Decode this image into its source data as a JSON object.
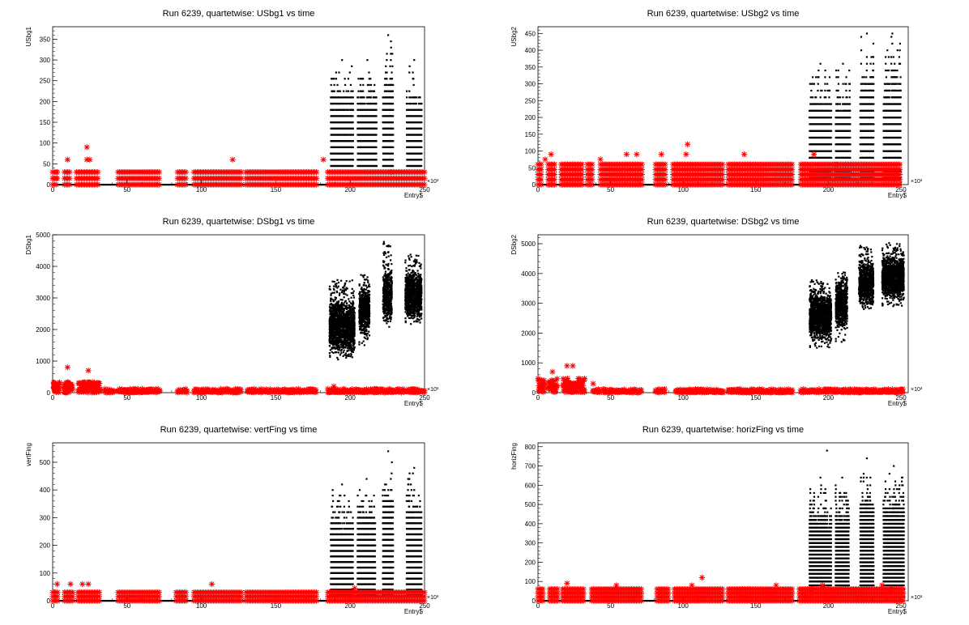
{
  "chart_data": [
    {
      "type": "scatter",
      "title": "Run 6239, quartetwise: USbg1 vs time",
      "xlabel": "Entry$",
      "ylabel": "USbg1",
      "x_multiplier_label": "×10³",
      "xlim": [
        0,
        250
      ],
      "ylim": [
        0,
        380
      ],
      "xticks": [
        0,
        50,
        100,
        150,
        200,
        250
      ],
      "yticks": [
        0,
        50,
        100,
        150,
        200,
        250,
        300,
        350
      ],
      "black_clusters": [
        {
          "x": [
            187,
            202
          ],
          "ymax": 300,
          "step": 15
        },
        {
          "x": [
            205,
            218
          ],
          "ymax": 300,
          "step": 15
        },
        {
          "x": [
            222,
            229
          ],
          "ymax": 360,
          "step": 15
        },
        {
          "x": [
            238,
            248
          ],
          "ymax": 300,
          "step": 15
        }
      ],
      "black_floor_segments": [
        [
          0,
          250
        ]
      ],
      "red_bands": [
        0,
        15,
        30
      ],
      "red_segments": [
        [
          0,
          3
        ],
        [
          8,
          12
        ],
        [
          16,
          31
        ],
        [
          44,
          72
        ],
        [
          84,
          90
        ],
        [
          95,
          127
        ],
        [
          130,
          178
        ],
        [
          185,
          250
        ]
      ],
      "red_outliers": [
        [
          3,
          15
        ],
        [
          3,
          30
        ],
        [
          10,
          60
        ],
        [
          23,
          90
        ],
        [
          23,
          60
        ],
        [
          25,
          60
        ],
        [
          121,
          60
        ],
        [
          182,
          60
        ],
        [
          227,
          30
        ]
      ]
    },
    {
      "type": "scatter",
      "title": "Run 6239, quartetwise: USbg2 vs time",
      "xlabel": "Entry$",
      "ylabel": "USbg2",
      "x_multiplier_label": "×10³",
      "xlim": [
        0,
        255
      ],
      "ylim": [
        0,
        470
      ],
      "xticks": [
        0,
        50,
        100,
        150,
        200,
        250
      ],
      "yticks": [
        0,
        50,
        100,
        150,
        200,
        250,
        300,
        350,
        400,
        450
      ],
      "black_clusters": [
        {
          "x": [
            187,
            202
          ],
          "ymax": 360,
          "step": 20
        },
        {
          "x": [
            205,
            215
          ],
          "ymax": 360,
          "step": 20
        },
        {
          "x": [
            222,
            231
          ],
          "ymax": 450,
          "step": 20
        },
        {
          "x": [
            238,
            250
          ],
          "ymax": 450,
          "step": 20
        }
      ],
      "black_floor_segments": [
        [
          0,
          250
        ]
      ],
      "red_bands": [
        0,
        15,
        30,
        45,
        60
      ],
      "red_segments": [
        [
          0,
          3
        ],
        [
          7,
          12
        ],
        [
          16,
          31
        ],
        [
          34,
          38
        ],
        [
          43,
          72
        ],
        [
          81,
          88
        ],
        [
          93,
          128
        ],
        [
          131,
          176
        ],
        [
          181,
          250
        ]
      ],
      "red_outliers": [
        [
          5,
          75
        ],
        [
          9,
          90
        ],
        [
          43,
          75
        ],
        [
          61,
          90
        ],
        [
          68,
          90
        ],
        [
          85,
          90
        ],
        [
          102,
          90
        ],
        [
          103,
          120
        ],
        [
          142,
          90
        ],
        [
          190,
          90
        ],
        [
          206,
          60
        ],
        [
          225,
          60
        ]
      ]
    },
    {
      "type": "scatter",
      "title": "Run 6239, quartetwise: DSbg1 vs time",
      "xlabel": "Entry$",
      "ylabel": "DSbg1",
      "x_multiplier_label": "×10³",
      "xlim": [
        0,
        250
      ],
      "ylim": [
        0,
        5000
      ],
      "xticks": [
        0,
        50,
        100,
        150,
        200,
        250
      ],
      "yticks": [
        0,
        1000,
        2000,
        3000,
        4000,
        5000
      ],
      "black_clouds": [
        {
          "x": [
            186,
            203
          ],
          "y": [
            1100,
            3600
          ],
          "center": 2100
        },
        {
          "x": [
            206,
            213
          ],
          "y": [
            1500,
            3800
          ],
          "center": 2600
        },
        {
          "x": [
            222,
            228
          ],
          "y": [
            2300,
            4800
          ],
          "center": 3100
        },
        {
          "x": [
            237,
            248
          ],
          "y": [
            2200,
            4400
          ],
          "center": 3100
        }
      ],
      "red_blocks": [
        [
          0,
          4
        ],
        [
          7,
          13
        ],
        [
          17,
          32
        ]
      ],
      "red_segments": [
        [
          35,
          42
        ],
        [
          44,
          72
        ],
        [
          84,
          91
        ],
        [
          95,
          127
        ],
        [
          131,
          177
        ],
        [
          185,
          250
        ]
      ],
      "red_block_height": 350,
      "red_segment_height": 150,
      "red_outliers": [
        [
          10,
          800
        ],
        [
          24,
          700
        ],
        [
          189,
          200
        ]
      ]
    },
    {
      "type": "scatter",
      "title": "Run 6239, quartetwise: DSbg2 vs time",
      "xlabel": "Entry$",
      "ylabel": "DSbg2",
      "x_multiplier_label": "×10³",
      "xlim": [
        0,
        255
      ],
      "ylim": [
        0,
        5300
      ],
      "xticks": [
        0,
        50,
        100,
        150,
        200,
        250
      ],
      "yticks": [
        0,
        1000,
        2000,
        3000,
        4000,
        5000
      ],
      "black_clouds": [
        {
          "x": [
            187,
            202
          ],
          "y": [
            1500,
            3800
          ],
          "center": 2600
        },
        {
          "x": [
            205,
            213
          ],
          "y": [
            1700,
            4100
          ],
          "center": 3000
        },
        {
          "x": [
            221,
            231
          ],
          "y": [
            2800,
            4950
          ],
          "center": 3700
        },
        {
          "x": [
            237,
            252
          ],
          "y": [
            2900,
            5050
          ],
          "center": 3900
        }
      ],
      "red_blocks": [
        [
          0,
          4
        ],
        [
          7,
          13
        ],
        [
          17,
          32
        ]
      ],
      "red_segments": [
        [
          38,
          43
        ],
        [
          45,
          72
        ],
        [
          81,
          88
        ],
        [
          95,
          128
        ],
        [
          131,
          176
        ],
        [
          181,
          252
        ]
      ],
      "red_block_height": 500,
      "red_segment_height": 150,
      "red_outliers": [
        [
          20,
          900
        ],
        [
          24,
          900
        ],
        [
          10,
          700
        ],
        [
          38,
          300
        ]
      ]
    },
    {
      "type": "scatter",
      "title": "Run 6239, quartetwise: vertFing vs time",
      "xlabel": "Entry$",
      "ylabel": "vertFing",
      "x_multiplier_label": "×10³",
      "xlim": [
        0,
        250
      ],
      "ylim": [
        0,
        570
      ],
      "xticks": [
        0,
        50,
        100,
        150,
        200,
        250
      ],
      "yticks": [
        0,
        100,
        200,
        300,
        400,
        500
      ],
      "black_clusters": [
        {
          "x": [
            187,
            202
          ],
          "ymax": 420,
          "step": 20
        },
        {
          "x": [
            205,
            217
          ],
          "ymax": 440,
          "step": 20
        },
        {
          "x": [
            222,
            229
          ],
          "ymax": 540,
          "step": 20
        },
        {
          "x": [
            238,
            248
          ],
          "ymax": 480,
          "step": 20
        }
      ],
      "black_floor_segments": [
        [
          0,
          250
        ]
      ],
      "red_bands": [
        0,
        15,
        30
      ],
      "red_segments": [
        [
          0,
          4
        ],
        [
          8,
          14
        ],
        [
          17,
          32
        ],
        [
          44,
          72
        ],
        [
          83,
          90
        ],
        [
          95,
          127
        ],
        [
          130,
          178
        ],
        [
          185,
          250
        ]
      ],
      "red_outliers": [
        [
          3,
          60
        ],
        [
          12,
          60
        ],
        [
          20,
          60
        ],
        [
          24,
          60
        ],
        [
          107,
          60
        ],
        [
          203,
          45
        ],
        [
          227,
          30
        ]
      ]
    },
    {
      "type": "scatter",
      "title": "Run 6239, quartetwise: horizFing vs time",
      "xlabel": "Entry$",
      "ylabel": "horizFing",
      "x_multiplier_label": "×10³",
      "xlim": [
        0,
        255
      ],
      "ylim": [
        0,
        820
      ],
      "xticks": [
        0,
        50,
        100,
        150,
        200,
        250
      ],
      "yticks": [
        0,
        100,
        200,
        300,
        400,
        500,
        600,
        700,
        800
      ],
      "black_clusters": [
        {
          "x": [
            187,
            202
          ],
          "ymax": 640,
          "step": 20
        },
        {
          "x": [
            205,
            214
          ],
          "ymax": 640,
          "step": 20
        },
        {
          "x": [
            222,
            231
          ],
          "ymax": 740,
          "step": 20
        },
        {
          "x": [
            238,
            252
          ],
          "ymax": 700,
          "step": 20
        }
      ],
      "black_outliers": [
        [
          199,
          780
        ]
      ],
      "black_floor_segments": [
        [
          0,
          252
        ]
      ],
      "red_bands": [
        0,
        20,
        40,
        60
      ],
      "red_segments": [
        [
          0,
          4
        ],
        [
          8,
          14
        ],
        [
          17,
          32
        ],
        [
          37,
          72
        ],
        [
          82,
          90
        ],
        [
          94,
          128
        ],
        [
          131,
          176
        ],
        [
          180,
          252
        ]
      ],
      "red_outliers": [
        [
          20,
          90
        ],
        [
          54,
          80
        ],
        [
          113,
          120
        ],
        [
          106,
          80
        ],
        [
          164,
          80
        ],
        [
          188,
          60
        ],
        [
          196,
          80
        ],
        [
          237,
          80
        ],
        [
          243,
          60
        ]
      ]
    }
  ]
}
